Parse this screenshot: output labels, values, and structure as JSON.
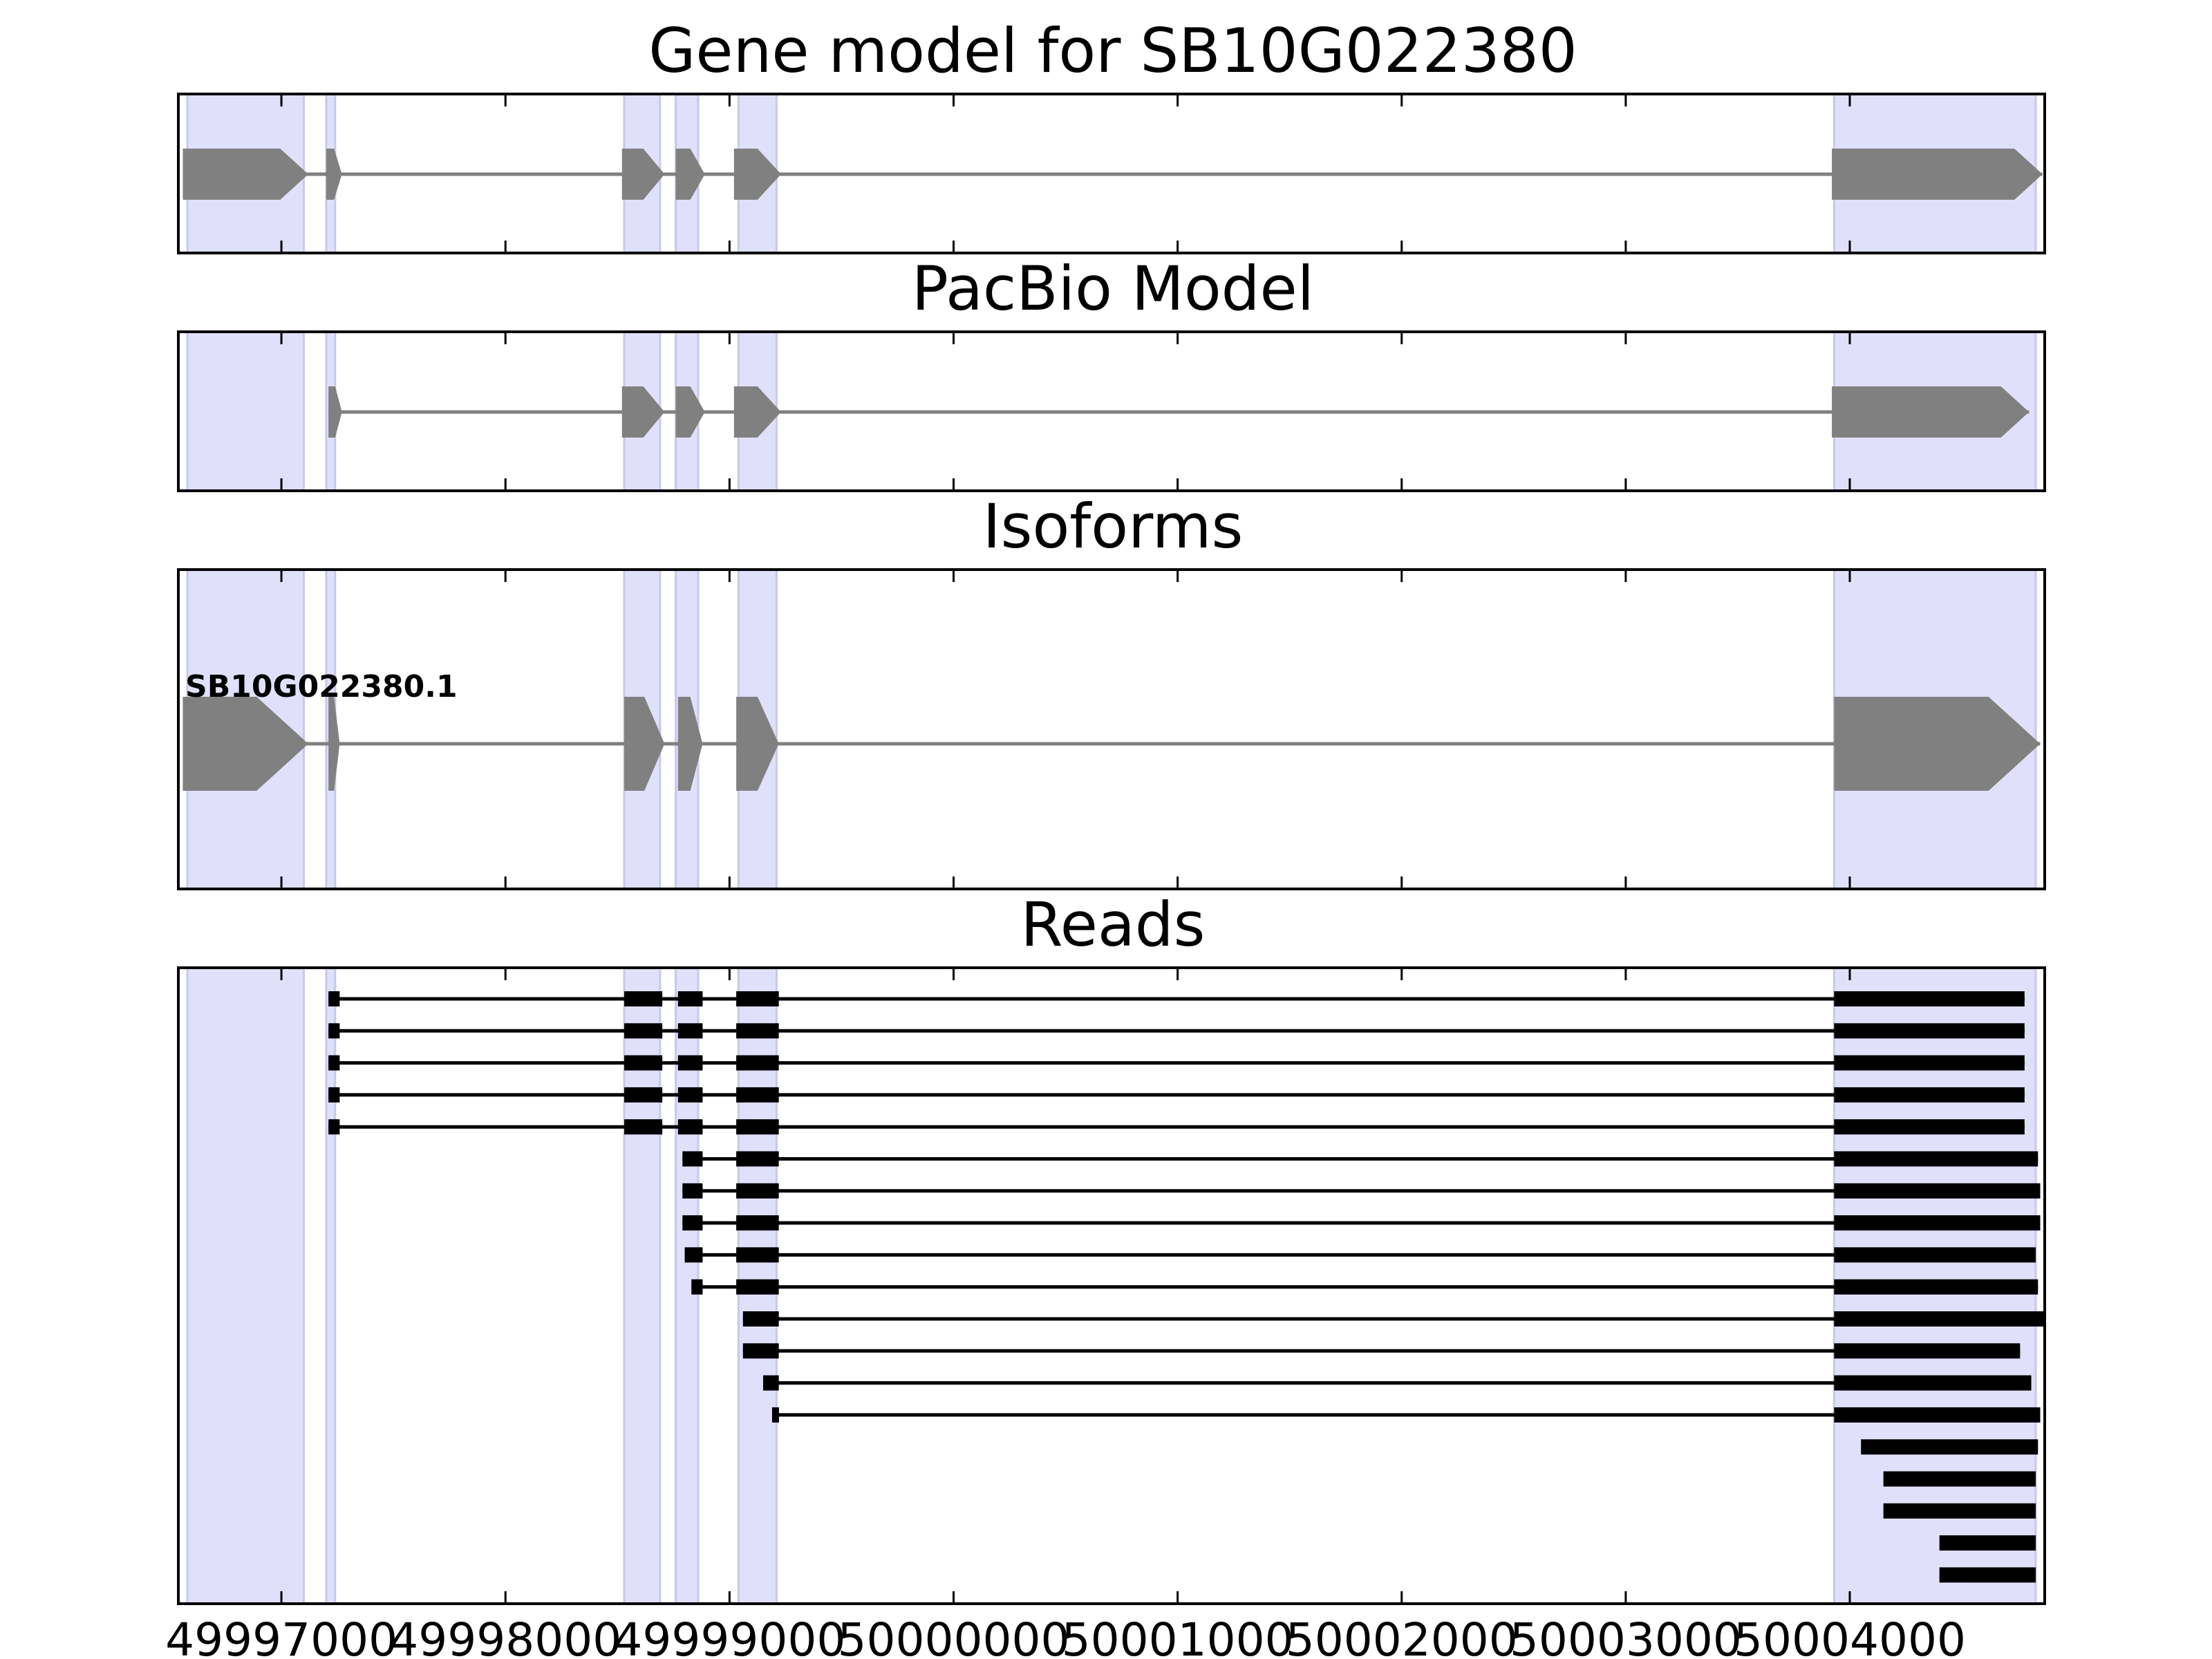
{
  "figure": {
    "panels": [
      {
        "id": "gene_model",
        "title": "Gene model for SB10G022380"
      },
      {
        "id": "pacbio",
        "title": "PacBio Model"
      },
      {
        "id": "isoforms",
        "title": "Isoforms",
        "isoform_label": "SB10G022380.1"
      },
      {
        "id": "reads",
        "title": "Reads"
      }
    ],
    "x_tick_labels": [
      "49997000",
      "49998000",
      "49999000",
      "50000000",
      "50001000",
      "50002000",
      "50003000",
      "50004000"
    ]
  },
  "colors": {
    "exon_shading": "#e0e0fb",
    "model_feature": "#808080",
    "read": "#000000",
    "axes": "#000000"
  },
  "chart_data": {
    "type": "gene_structure",
    "strand": "+",
    "xlim": [
      49996540,
      50004870
    ],
    "xticks": [
      49997000,
      49998000,
      49999000,
      50000000,
      50001000,
      50002000,
      50003000,
      50004000
    ],
    "exon_regions": [
      [
        49996580,
        49997100
      ],
      [
        49997200,
        49997240
      ],
      [
        49998530,
        49998690
      ],
      [
        49998760,
        49998860
      ],
      [
        49999040,
        49999210
      ],
      [
        50003930,
        50004830
      ]
    ],
    "gene_model": [
      [
        49996560,
        49997120
      ],
      [
        49997200,
        49997270
      ],
      [
        49998520,
        49998710
      ],
      [
        49998760,
        49998890
      ],
      [
        49999020,
        49999230
      ],
      [
        50003920,
        50004860
      ]
    ],
    "pacbio_model": [
      [
        49997210,
        49997270
      ],
      [
        49998520,
        49998710
      ],
      [
        49998760,
        49998890
      ],
      [
        49999020,
        49999230
      ],
      [
        50003920,
        50004800
      ]
    ],
    "isoforms": [
      {
        "label": "SB10G022380.1",
        "exons": [
          [
            49996560,
            49997120
          ],
          [
            49997210,
            49997260
          ],
          [
            49998530,
            49998710
          ],
          [
            49998770,
            49998880
          ],
          [
            49999030,
            49999220
          ],
          [
            50003930,
            50004850
          ]
        ]
      }
    ],
    "reads": [
      [
        [
          49997210,
          49997260
        ],
        [
          49998530,
          49998700
        ],
        [
          49998770,
          49998880
        ],
        [
          49999030,
          49999220
        ],
        [
          50003930,
          50004780
        ]
      ],
      [
        [
          49997210,
          49997260
        ],
        [
          49998530,
          49998700
        ],
        [
          49998770,
          49998880
        ],
        [
          49999030,
          49999220
        ],
        [
          50003930,
          50004780
        ]
      ],
      [
        [
          49997210,
          49997260
        ],
        [
          49998530,
          49998700
        ],
        [
          49998770,
          49998880
        ],
        [
          49999030,
          49999220
        ],
        [
          50003930,
          50004780
        ]
      ],
      [
        [
          49997210,
          49997260
        ],
        [
          49998530,
          49998700
        ],
        [
          49998770,
          49998880
        ],
        [
          49999030,
          49999220
        ],
        [
          50003930,
          50004780
        ]
      ],
      [
        [
          49997210,
          49997260
        ],
        [
          49998530,
          49998700
        ],
        [
          49998770,
          49998880
        ],
        [
          49999030,
          49999220
        ],
        [
          50003930,
          50004780
        ]
      ],
      [
        [
          49998790,
          49998880
        ],
        [
          49999030,
          49999220
        ],
        [
          50003930,
          50004840
        ]
      ],
      [
        [
          49998790,
          49998880
        ],
        [
          49999030,
          49999220
        ],
        [
          50003930,
          50004850
        ]
      ],
      [
        [
          49998790,
          49998880
        ],
        [
          49999030,
          49999220
        ],
        [
          50003930,
          50004850
        ]
      ],
      [
        [
          49998800,
          49998880
        ],
        [
          49999030,
          49999220
        ],
        [
          50003930,
          50004830
        ]
      ],
      [
        [
          49998830,
          49998880
        ],
        [
          49999030,
          49999220
        ],
        [
          50003930,
          50004840
        ]
      ],
      [
        [
          49999060,
          49999220
        ],
        [
          50003930,
          50004870
        ]
      ],
      [
        [
          49999060,
          49999220
        ],
        [
          50003930,
          50004760
        ]
      ],
      [
        [
          49999150,
          49999220
        ],
        [
          50003930,
          50004810
        ]
      ],
      [
        [
          49999190,
          49999220
        ],
        [
          50003930,
          50004850
        ]
      ],
      [
        [
          50004050,
          50004840
        ]
      ],
      [
        [
          50004150,
          50004830
        ]
      ],
      [
        [
          50004150,
          50004830
        ]
      ],
      [
        [
          50004400,
          50004830
        ]
      ],
      [
        [
          50004400,
          50004830
        ]
      ]
    ]
  }
}
